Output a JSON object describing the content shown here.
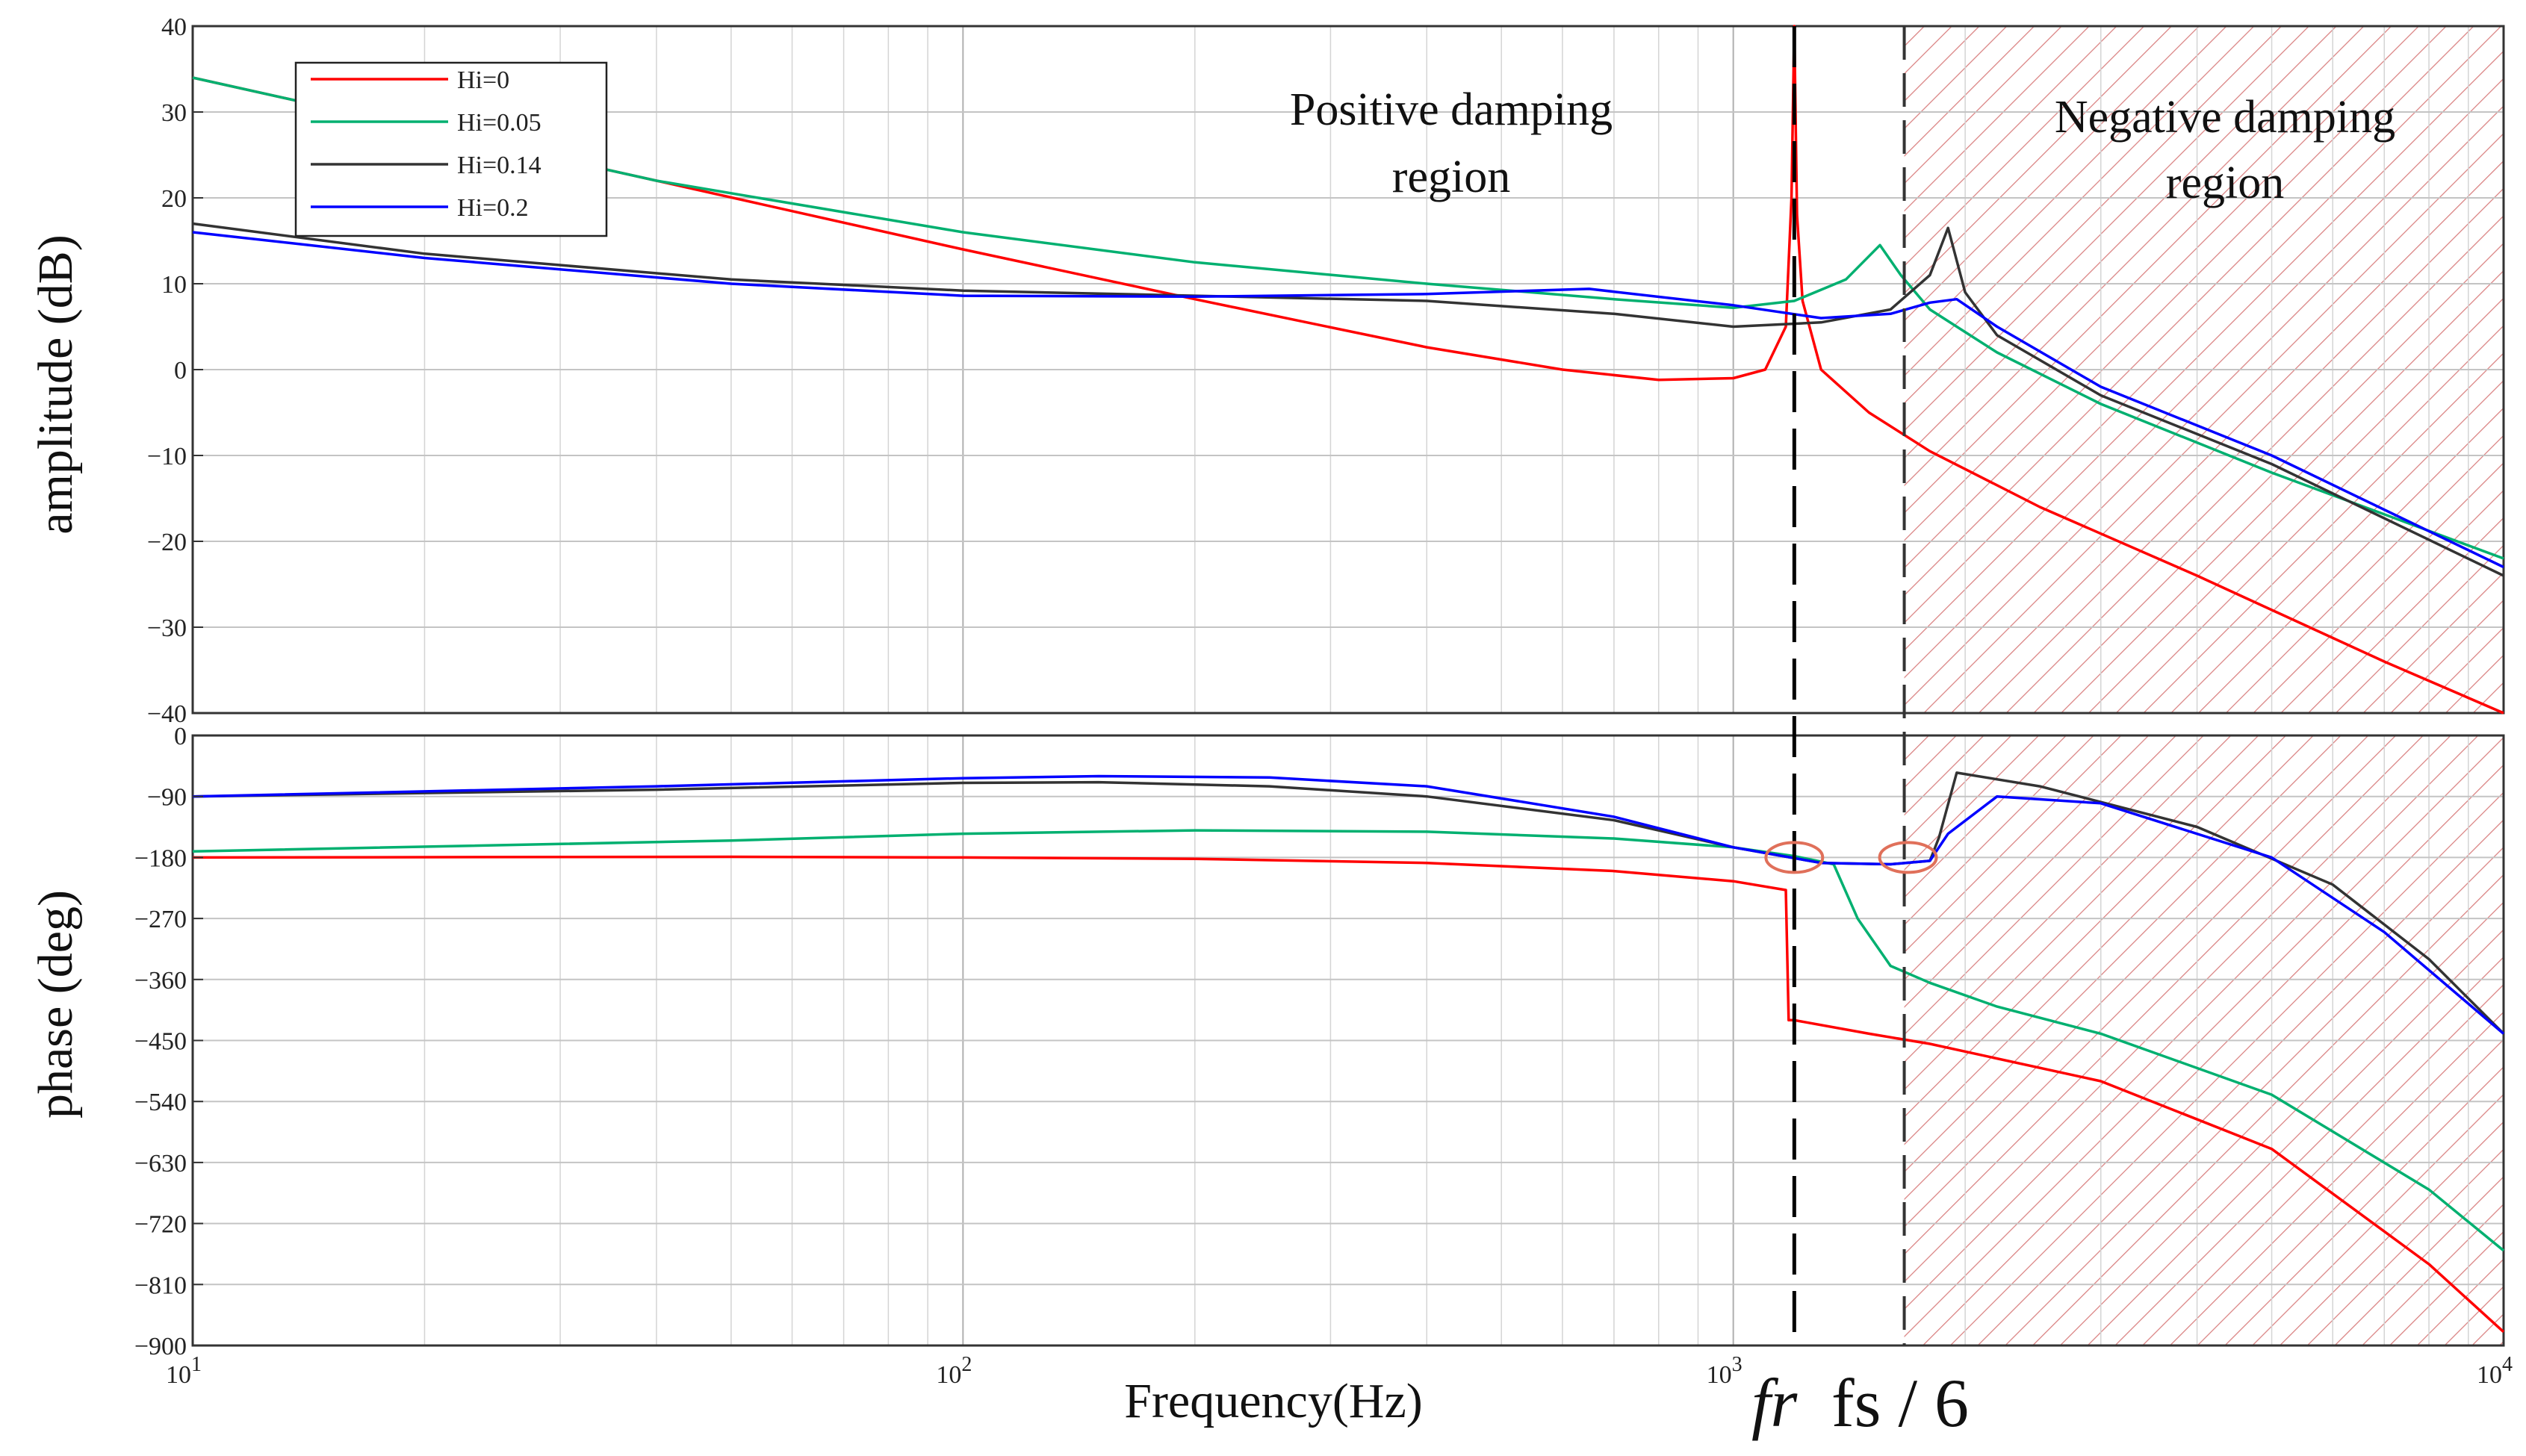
{
  "chart_data": [
    {
      "panel": "amplitude",
      "type": "line",
      "ylabel": "amplitude (dB)",
      "xscale": "log",
      "xlim": [
        10,
        10000
      ],
      "ylim": [
        -40,
        40
      ],
      "yticks": [
        40,
        30,
        20,
        10,
        0,
        -10,
        -20,
        -30,
        -40
      ],
      "ytick_labels": [
        "40",
        "30",
        "20",
        "10",
        "0",
        "−10",
        "−20",
        "−30",
        "−40"
      ],
      "legend": {
        "position": "top-left",
        "entries": [
          "Hi=0",
          "Hi=0.05",
          "Hi=0.14",
          "Hi=0.2"
        ]
      },
      "series": [
        {
          "name": "Hi=0",
          "color": "#ff0000",
          "x": [
            10,
            20,
            40,
            100,
            200,
            400,
            600,
            800,
            1000,
            1100,
            1170,
            1190,
            1200,
            1210,
            1230,
            1300,
            1500,
            1800,
            2500,
            4000,
            7000,
            10000
          ],
          "y": [
            34,
            28,
            22,
            14,
            8.2,
            2.6,
            0,
            -1.2,
            -1,
            0,
            5,
            20,
            40,
            18,
            8,
            0,
            -5,
            -9.5,
            -16,
            -24,
            -34,
            -41
          ]
        },
        {
          "name": "Hi=0.05",
          "color": "#00b070",
          "x": [
            10,
            20,
            40,
            100,
            200,
            400,
            700,
            1000,
            1200,
            1400,
            1550,
            1650,
            1800,
            2200,
            3000,
            5000,
            10000
          ],
          "y": [
            34,
            28,
            22,
            16,
            12.5,
            10,
            8.2,
            7.2,
            8,
            10.5,
            14.5,
            11,
            7,
            2,
            -4,
            -12,
            -22
          ]
        },
        {
          "name": "Hi=0.14",
          "color": "#333333",
          "x": [
            10,
            20,
            50,
            100,
            200,
            400,
            700,
            1000,
            1300,
            1600,
            1800,
            1900,
            2000,
            2200,
            3000,
            5000,
            10000
          ],
          "y": [
            17,
            13.5,
            10.5,
            9.2,
            8.6,
            8,
            6.5,
            5,
            5.5,
            7,
            11,
            16.5,
            9,
            4,
            -3,
            -11,
            -24
          ]
        },
        {
          "name": "Hi=0.2",
          "color": "#0000ff",
          "x": [
            10,
            20,
            50,
            100,
            200,
            400,
            650,
            1000,
            1300,
            1600,
            1800,
            1950,
            2200,
            3000,
            5000,
            10000
          ],
          "y": [
            16,
            13,
            10,
            8.6,
            8.5,
            8.8,
            9.4,
            7.5,
            6,
            6.5,
            7.8,
            8.2,
            5,
            -2,
            -10,
            -23
          ]
        }
      ],
      "annotations": [
        "Positive damping region",
        "Negative damping region"
      ]
    },
    {
      "panel": "phase",
      "type": "line",
      "ylabel": "phase (deg)",
      "xlabel": "Frequency(Hz)",
      "xscale": "log",
      "xlim": [
        10,
        10000
      ],
      "ylim": [
        -900,
        0
      ],
      "yticks": [
        0,
        -90,
        -180,
        -270,
        -360,
        -450,
        -540,
        -630,
        -720,
        -810,
        -900
      ],
      "ytick_labels": [
        "0",
        "−90",
        "−180",
        "−270",
        "−360",
        "−450",
        "−540",
        "−630",
        "−720",
        "−810",
        "−900"
      ],
      "xticks": [
        10,
        100,
        1000,
        10000
      ],
      "xtick_labels": [
        {
          "base": "10",
          "exp": "1"
        },
        {
          "base": "10",
          "exp": "2"
        },
        {
          "base": "10",
          "exp": "3"
        },
        {
          "base": "10",
          "exp": "4"
        }
      ],
      "series": [
        {
          "name": "Hi=0",
          "color": "#ff0000",
          "x": [
            10,
            50,
            100,
            200,
            400,
            700,
            1000,
            1170,
            1180,
            1200,
            1500,
            1800,
            3000,
            5000,
            8000,
            10000
          ],
          "y": [
            -180,
            -179,
            -180,
            -182,
            -188,
            -200,
            -215,
            -228,
            -420,
            -420,
            -440,
            -455,
            -510,
            -610,
            -780,
            -880
          ]
        },
        {
          "name": "Hi=0.05",
          "color": "#00b070",
          "x": [
            10,
            50,
            100,
            200,
            400,
            700,
            1000,
            1200,
            1350,
            1450,
            1600,
            1800,
            2200,
            3000,
            5000,
            8000,
            10000
          ],
          "y": [
            -171,
            -155,
            -145,
            -140,
            -142,
            -152,
            -165,
            -178,
            -190,
            -270,
            -340,
            -365,
            -400,
            -440,
            -530,
            -670,
            -760
          ]
        },
        {
          "name": "Hi=0.14",
          "color": "#333333",
          "x": [
            10,
            40,
            100,
            150,
            250,
            400,
            700,
            1000,
            1300,
            1600,
            1800,
            1850,
            1950,
            2500,
            4000,
            6000,
            8000,
            10000
          ],
          "y": [
            -90,
            -80,
            -70,
            -69,
            -75,
            -90,
            -125,
            -165,
            -188,
            -190,
            -185,
            -150,
            -55,
            -75,
            -135,
            -220,
            -330,
            -440
          ]
        },
        {
          "name": "Hi=0.2",
          "color": "#0000ff",
          "x": [
            10,
            40,
            100,
            150,
            250,
            400,
            700,
            1000,
            1300,
            1600,
            1800,
            1900,
            2200,
            3000,
            5000,
            7000,
            10000
          ],
          "y": [
            -90,
            -75,
            -63,
            -60,
            -62,
            -75,
            -120,
            -165,
            -188,
            -190,
            -185,
            -145,
            -90,
            -100,
            -180,
            -290,
            -440
          ]
        }
      ]
    }
  ],
  "markers": {
    "fr_label": "fr",
    "fs_label": "fs / 6",
    "fr_hz": 1200,
    "fs6_hz": 1667
  }
}
